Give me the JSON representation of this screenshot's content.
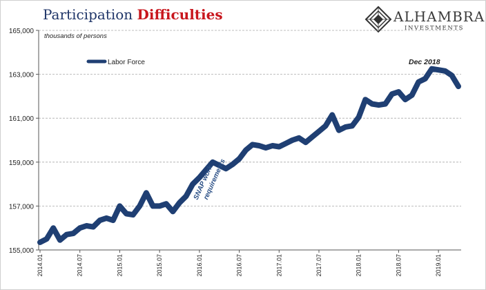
{
  "header": {
    "title_part1": "Participation",
    "title_part2": "Difficulties",
    "logo_name": "ALHAMBRA",
    "logo_sub": "INVESTMENTS"
  },
  "chart_data": {
    "type": "line",
    "units": "thousands of persons",
    "ylim": [
      155000,
      165000
    ],
    "y_ticks": [
      155000,
      157000,
      159000,
      161000,
      163000,
      165000
    ],
    "y_tick_labels": [
      "155,000",
      "157,000",
      "159,000",
      "161,000",
      "163,000",
      "165,000"
    ],
    "x_tick_labels": [
      "2014.01",
      "2014.07",
      "2015.01",
      "2015.07",
      "2016.01",
      "2016.07",
      "2017.01",
      "2017.07",
      "2018.01",
      "2018.07",
      "2019.01"
    ],
    "grid": "horizontal dashed",
    "legend_position": "top-left",
    "series": [
      {
        "name": "Labor Force",
        "color": "#1f3f73",
        "x_start": "2014.01",
        "frequency": "monthly",
        "values": [
          155350,
          155500,
          156000,
          155450,
          155700,
          155750,
          156000,
          156100,
          156050,
          156350,
          156450,
          156350,
          157000,
          156650,
          156600,
          157000,
          157600,
          157000,
          157000,
          157100,
          156750,
          157150,
          157450,
          158000,
          158300,
          158650,
          159000,
          158850,
          158700,
          158900,
          159150,
          159550,
          159800,
          159750,
          159650,
          159750,
          159700,
          159850,
          160000,
          160100,
          159900,
          160150,
          160400,
          160650,
          161150,
          160450,
          160600,
          160650,
          161050,
          161850,
          161650,
          161600,
          161650,
          162100,
          162200,
          161850,
          162050,
          162650,
          162800,
          163250,
          163200,
          163150,
          162950,
          162450
        ]
      }
    ],
    "annotations": [
      {
        "text": "Dec 2018"
      },
      {
        "text": "SNAP work requirements"
      }
    ]
  }
}
